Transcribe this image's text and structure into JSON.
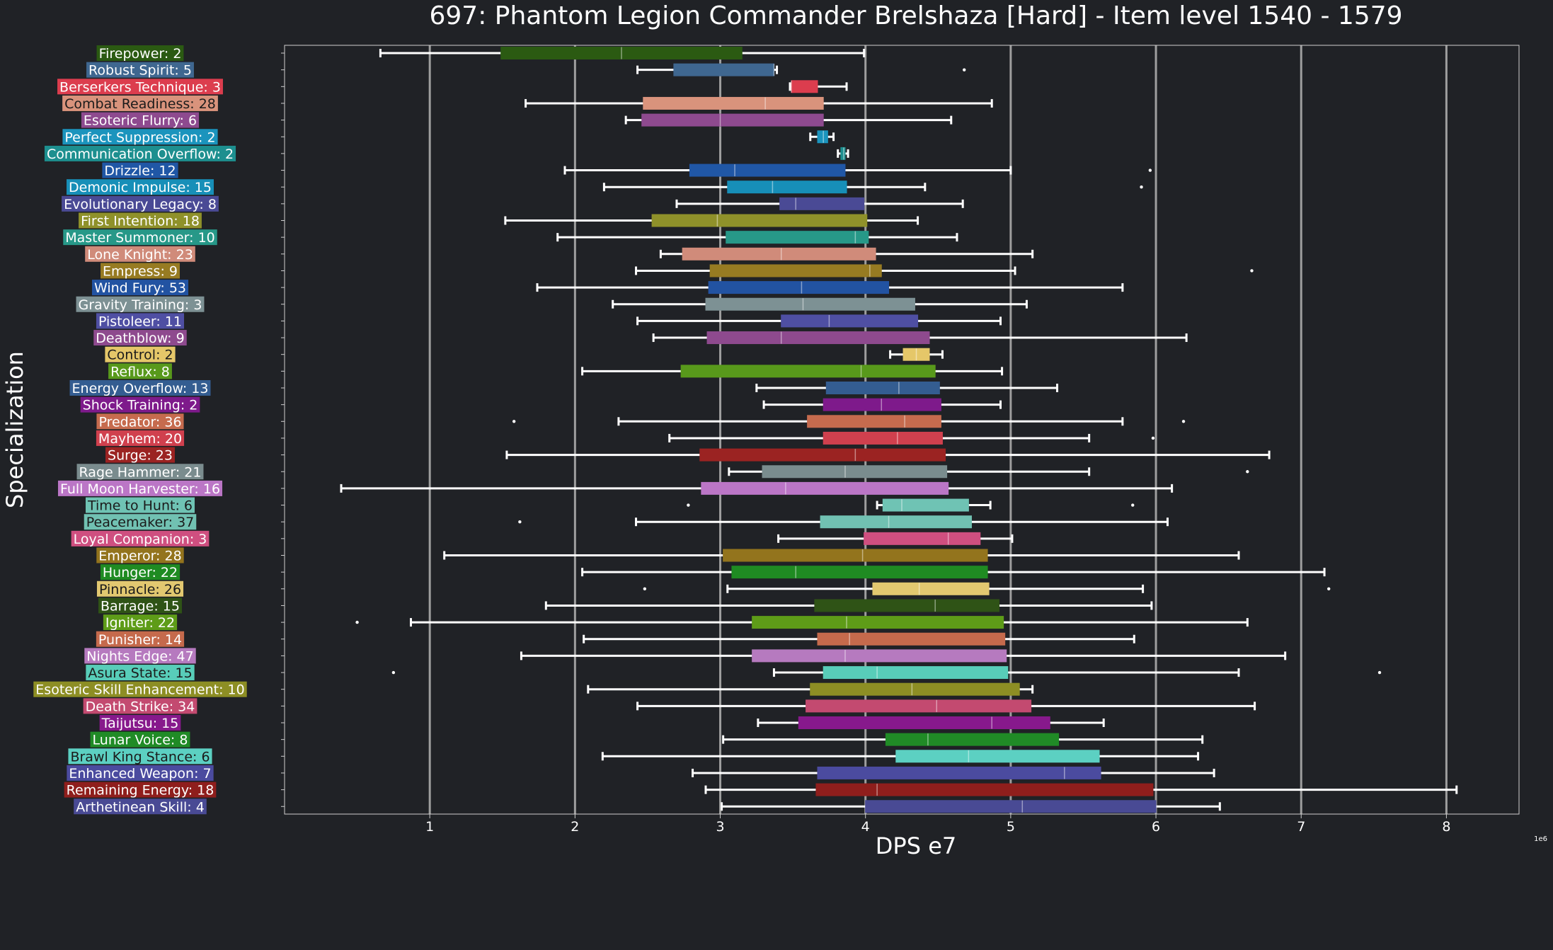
{
  "chart_data": {
    "type": "box",
    "title": "697: Phantom Legion Commander Brelshaza [Hard] - Item level 1540 - 1579",
    "xlabel": "DPS e7",
    "ylabel": "Specialization",
    "offset_label": "1e6",
    "xlim": [
      0.0,
      8.5
    ],
    "xticks": [
      1,
      2,
      3,
      4,
      5,
      6,
      7,
      8
    ],
    "grid": true,
    "colors": {
      "background": "#202226",
      "grid": "#b4b4b4",
      "text": "#ffffff",
      "whisker": "#ffffff"
    },
    "specs": [
      {
        "label": "Firepower: 2",
        "color": "#2b5a12",
        "min": 0.66,
        "q1": 1.49,
        "median": 2.32,
        "q3": 3.15,
        "max": 3.99,
        "outliers": []
      },
      {
        "label": "Robust Spirit: 5",
        "color": "#3f6790",
        "min": 2.43,
        "q1": 2.68,
        "median": 3.37,
        "q3": 3.37,
        "max": 3.39,
        "outliers": [
          4.68
        ]
      },
      {
        "label": "Berserkers Technique: 3",
        "color": "#dc3d4e",
        "min": 3.48,
        "q1": 3.49,
        "median": 3.49,
        "q3": 3.67,
        "max": 3.87,
        "outliers": []
      },
      {
        "label": "Combat Readiness: 28",
        "color": "#d9937c",
        "min": 1.66,
        "q1": 2.47,
        "median": 3.31,
        "q3": 3.71,
        "max": 4.87,
        "outliers": []
      },
      {
        "label": "Esoteric Flurry: 6",
        "color": "#8e4a8f",
        "min": 2.35,
        "q1": 2.46,
        "median": 3.0,
        "q3": 3.71,
        "max": 4.59,
        "outliers": []
      },
      {
        "label": "Perfect Suppression: 2",
        "color": "#1b94bd",
        "min": 3.62,
        "q1": 3.67,
        "median": 3.71,
        "q3": 3.74,
        "max": 3.78,
        "outliers": []
      },
      {
        "label": "Communication Overflow: 2",
        "color": "#1d8f8f",
        "min": 3.81,
        "q1": 3.83,
        "median": 3.85,
        "q3": 3.86,
        "max": 3.88,
        "outliers": []
      },
      {
        "label": "Drizzle: 12",
        "color": "#2057a6",
        "min": 1.93,
        "q1": 2.79,
        "median": 3.1,
        "q3": 3.86,
        "max": 5.0,
        "outliers": [
          5.96
        ]
      },
      {
        "label": "Demonic Impulse: 15",
        "color": "#178fb8",
        "min": 2.2,
        "q1": 3.05,
        "median": 3.36,
        "q3": 3.87,
        "max": 4.41,
        "outliers": [
          5.9
        ]
      },
      {
        "label": "Evolutionary Legacy: 8",
        "color": "#4a4a95",
        "min": 2.7,
        "q1": 3.41,
        "median": 3.52,
        "q3": 3.99,
        "max": 4.67,
        "outliers": []
      },
      {
        "label": "First Intention: 18",
        "color": "#8f912a",
        "min": 1.52,
        "q1": 2.53,
        "median": 2.98,
        "q3": 4.01,
        "max": 4.36,
        "outliers": []
      },
      {
        "label": "Master Summoner: 10",
        "color": "#279888",
        "min": 1.88,
        "q1": 3.04,
        "median": 3.93,
        "q3": 4.02,
        "max": 4.63,
        "outliers": []
      },
      {
        "label": "Lone Knight: 23",
        "color": "#d08b7a",
        "min": 2.59,
        "q1": 2.74,
        "median": 3.42,
        "q3": 4.07,
        "max": 5.15,
        "outliers": []
      },
      {
        "label": "Empress: 9",
        "color": "#977b22",
        "min": 2.42,
        "q1": 2.93,
        "median": 4.03,
        "q3": 4.11,
        "max": 5.03,
        "outliers": [
          6.66
        ]
      },
      {
        "label": "Wind Fury: 53",
        "color": "#2253a2",
        "min": 1.74,
        "q1": 2.92,
        "median": 3.56,
        "q3": 4.16,
        "max": 5.77,
        "outliers": []
      },
      {
        "label": "Gravity Training: 3",
        "color": "#7d9194",
        "min": 2.26,
        "q1": 2.9,
        "median": 3.57,
        "q3": 4.34,
        "max": 5.11,
        "outliers": []
      },
      {
        "label": "Pistoleer: 11",
        "color": "#4f4fa3",
        "min": 2.43,
        "q1": 3.42,
        "median": 3.75,
        "q3": 4.36,
        "max": 4.93,
        "outliers": []
      },
      {
        "label": "Deathblow: 9",
        "color": "#8e4a8e",
        "min": 2.54,
        "q1": 2.91,
        "median": 3.42,
        "q3": 4.44,
        "max": 6.21,
        "outliers": []
      },
      {
        "label": "Control: 2",
        "color": "#e5c769",
        "min": 4.17,
        "q1": 4.26,
        "median": 4.35,
        "q3": 4.44,
        "max": 4.53,
        "outliers": []
      },
      {
        "label": "Reflux: 8",
        "color": "#58991b",
        "min": 2.05,
        "q1": 2.73,
        "median": 3.97,
        "q3": 4.48,
        "max": 4.94,
        "outliers": []
      },
      {
        "label": "Energy Overflow: 13",
        "color": "#345d91",
        "min": 3.25,
        "q1": 3.73,
        "median": 4.23,
        "q3": 4.51,
        "max": 5.32,
        "outliers": []
      },
      {
        "label": "Shock Training: 2",
        "color": "#7e1a8b",
        "min": 3.3,
        "q1": 3.71,
        "median": 4.11,
        "q3": 4.52,
        "max": 4.93,
        "outliers": []
      },
      {
        "label": "Predator: 36",
        "color": "#c66b4e",
        "min": 2.3,
        "q1": 3.6,
        "median": 4.27,
        "q3": 4.52,
        "max": 5.77,
        "outliers": [
          1.58,
          6.19
        ]
      },
      {
        "label": "Mayhem: 20",
        "color": "#d0404e",
        "min": 2.65,
        "q1": 3.71,
        "median": 4.22,
        "q3": 4.53,
        "max": 5.54,
        "outliers": [
          5.98
        ]
      },
      {
        "label": "Surge: 23",
        "color": "#9b2322",
        "min": 1.53,
        "q1": 2.86,
        "median": 3.93,
        "q3": 4.55,
        "max": 6.78,
        "outliers": []
      },
      {
        "label": "Rage Hammer: 21",
        "color": "#7a8c8e",
        "min": 3.06,
        "q1": 3.29,
        "median": 3.86,
        "q3": 4.56,
        "max": 5.54,
        "outliers": [
          6.63
        ]
      },
      {
        "label": "Full Moon Harvester: 16",
        "color": "#bb76c6",
        "min": 0.39,
        "q1": 2.87,
        "median": 3.45,
        "q3": 4.57,
        "max": 6.11,
        "outliers": []
      },
      {
        "label": "Time to Hunt: 6",
        "color": "#6fc3b4",
        "min": 4.08,
        "q1": 4.12,
        "median": 4.25,
        "q3": 4.71,
        "max": 4.86,
        "outliers": [
          2.78,
          5.84
        ]
      },
      {
        "label": "Peacemaker: 37",
        "color": "#71c1b2",
        "min": 2.42,
        "q1": 3.69,
        "median": 4.16,
        "q3": 4.73,
        "max": 6.08,
        "outliers": [
          1.62
        ]
      },
      {
        "label": "Loyal Companion: 3",
        "color": "#cf4f80",
        "min": 3.4,
        "q1": 3.99,
        "median": 4.57,
        "q3": 4.79,
        "max": 5.01,
        "outliers": []
      },
      {
        "label": "Emperor: 28",
        "color": "#93741d",
        "min": 1.1,
        "q1": 3.02,
        "median": 3.98,
        "q3": 4.84,
        "max": 6.57,
        "outliers": []
      },
      {
        "label": "Hunger: 22",
        "color": "#1f8b22",
        "min": 2.05,
        "q1": 3.08,
        "median": 3.52,
        "q3": 4.84,
        "max": 7.16,
        "outliers": []
      },
      {
        "label": "Pinnacle: 26",
        "color": "#e2c870",
        "min": 3.05,
        "q1": 4.05,
        "median": 4.37,
        "q3": 4.85,
        "max": 5.91,
        "outliers": [
          2.48,
          7.19
        ]
      },
      {
        "label": "Barrage: 15",
        "color": "#2f5316",
        "min": 1.8,
        "q1": 3.65,
        "median": 4.48,
        "q3": 4.92,
        "max": 5.97,
        "outliers": []
      },
      {
        "label": "Igniter: 22",
        "color": "#5e9c18",
        "min": 0.87,
        "q1": 3.22,
        "median": 3.87,
        "q3": 4.95,
        "max": 6.63,
        "outliers": [
          0.5
        ]
      },
      {
        "label": "Punisher: 14",
        "color": "#c56a4c",
        "min": 2.06,
        "q1": 3.67,
        "median": 3.89,
        "q3": 4.96,
        "max": 5.85,
        "outliers": []
      },
      {
        "label": "Nights Edge: 47",
        "color": "#b67abf",
        "min": 1.63,
        "q1": 3.22,
        "median": 3.86,
        "q3": 4.97,
        "max": 6.89,
        "outliers": []
      },
      {
        "label": "Asura State: 15",
        "color": "#58cdb9",
        "min": 3.37,
        "q1": 3.71,
        "median": 4.08,
        "q3": 4.98,
        "max": 6.57,
        "outliers": [
          0.75,
          7.54
        ]
      },
      {
        "label": "Esoteric Skill Enhancement: 10",
        "color": "#8d8e24",
        "min": 2.09,
        "q1": 3.62,
        "median": 4.32,
        "q3": 5.06,
        "max": 5.15,
        "outliers": []
      },
      {
        "label": "Death Strike: 34",
        "color": "#c34a70",
        "min": 2.43,
        "q1": 3.59,
        "median": 4.49,
        "q3": 5.14,
        "max": 6.68,
        "outliers": []
      },
      {
        "label": "Taijutsu: 15",
        "color": "#87198c",
        "min": 3.26,
        "q1": 3.54,
        "median": 4.87,
        "q3": 5.27,
        "max": 5.64,
        "outliers": []
      },
      {
        "label": "Lunar Voice: 8",
        "color": "#208b26",
        "min": 3.02,
        "q1": 4.14,
        "median": 4.43,
        "q3": 5.33,
        "max": 6.32,
        "outliers": []
      },
      {
        "label": "Brawl King Stance: 6",
        "color": "#5cd0c2",
        "min": 2.19,
        "q1": 4.21,
        "median": 4.71,
        "q3": 5.61,
        "max": 6.29,
        "outliers": []
      },
      {
        "label": "Enhanced Weapon: 7",
        "color": "#4b4b9f",
        "min": 2.81,
        "q1": 3.67,
        "median": 5.37,
        "q3": 5.62,
        "max": 6.4,
        "outliers": []
      },
      {
        "label": "Remaining Energy: 18",
        "color": "#8f1e1c",
        "min": 2.9,
        "q1": 3.66,
        "median": 4.08,
        "q3": 5.98,
        "max": 8.07,
        "outliers": []
      },
      {
        "label": "Arthetinean Skill: 4",
        "color": "#494a94",
        "min": 3.01,
        "q1": 4.0,
        "median": 5.08,
        "q3": 6.0,
        "max": 6.44,
        "outliers": []
      }
    ]
  }
}
